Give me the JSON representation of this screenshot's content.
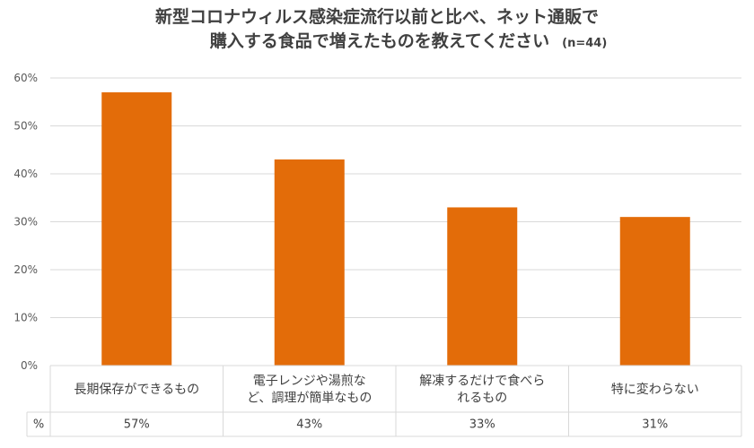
{
  "chart_data": {
    "type": "bar",
    "title_line1": "新型コロナウィルス感染症流行以前と比べ、ネット通販で",
    "title_line2": "購入する食品で増えたものを教えてください",
    "sample_size": "(n=44)",
    "categories": [
      [
        "長期保存ができるもの"
      ],
      [
        "電子レンジや湯煎な",
        "ど、調理が簡単なもの"
      ],
      [
        "解凍するだけで食べら",
        "れるもの"
      ],
      [
        "特に変わらない"
      ]
    ],
    "values": [
      57,
      43,
      33,
      31
    ],
    "value_labels": [
      "57%",
      "43%",
      "33%",
      "31%"
    ],
    "table_row_label": "%",
    "ylim": [
      0,
      60
    ],
    "y_ticks": [
      0,
      10,
      20,
      30,
      40,
      50,
      60
    ],
    "y_tick_labels": [
      "0%",
      "10%",
      "20%",
      "30%",
      "40%",
      "50%",
      "60%"
    ],
    "grid": true,
    "bar_color": "#e36c09",
    "grid_color": "#d9d9d9"
  }
}
